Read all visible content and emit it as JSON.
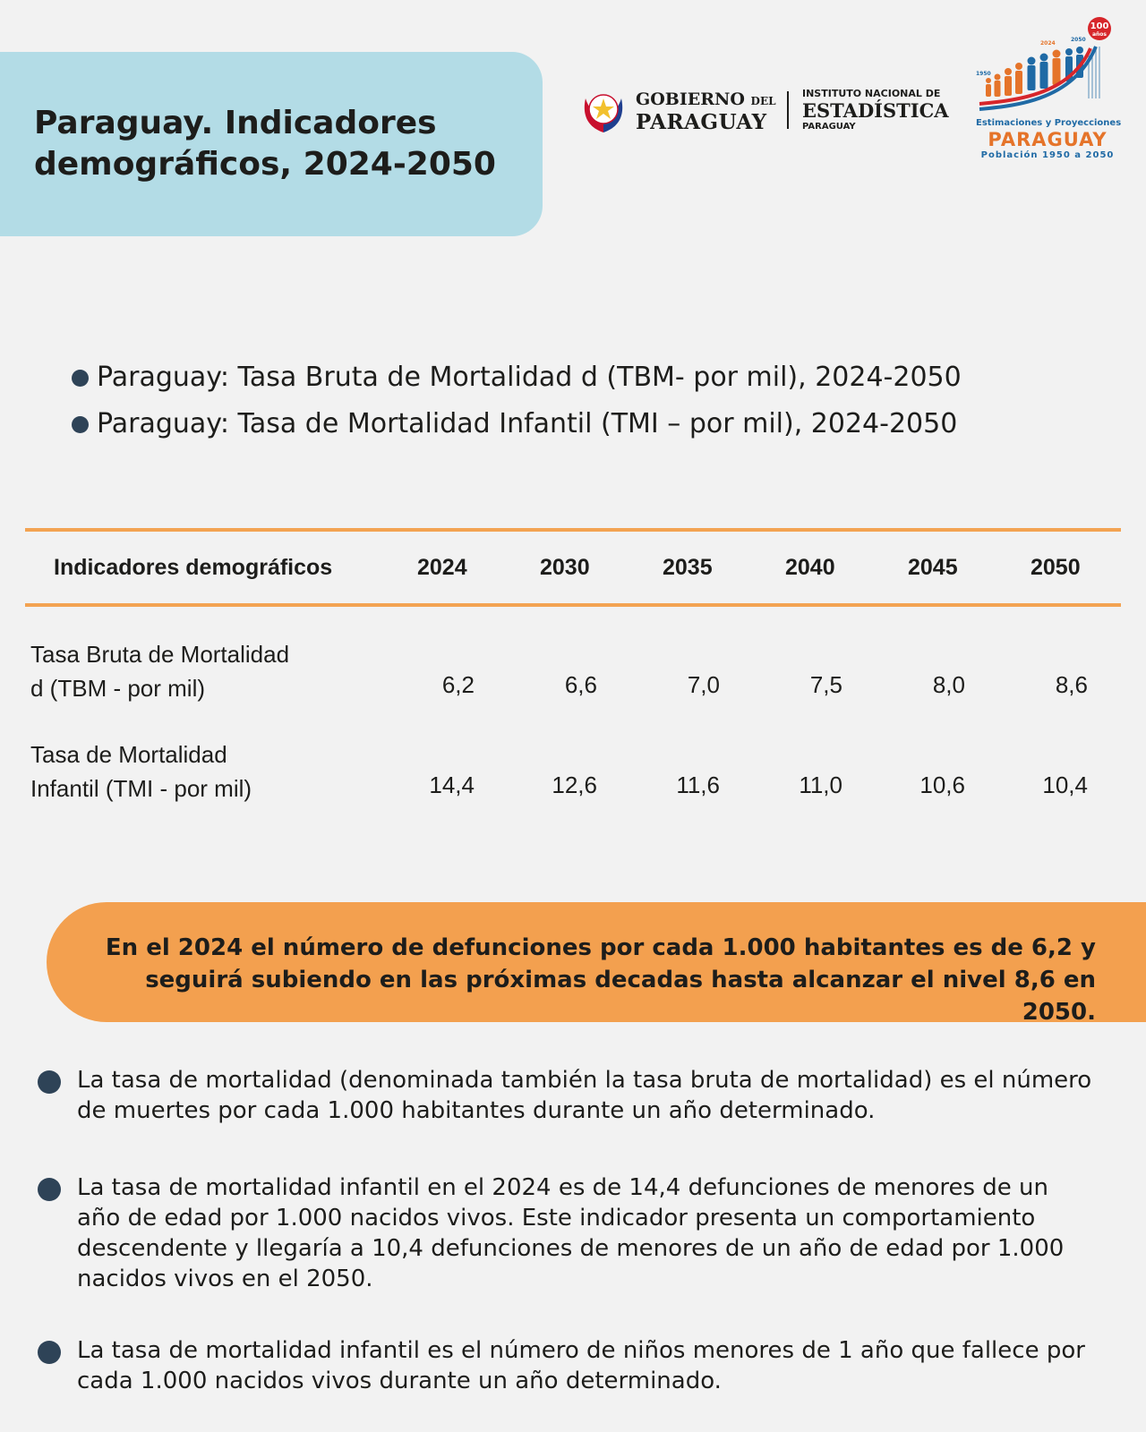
{
  "header": {
    "title": "Paraguay. Indicadores demográficos, 2024-2050"
  },
  "logos": {
    "gov_line1": "GOBIERNO",
    "gov_del": "DEL",
    "gov_line2": "PARAGUAY",
    "ine_line1": "INSTITUTO NACIONAL DE",
    "ine_line2": "ESTADÍSTICA",
    "ine_line3": "PARAGUAY",
    "pop_badge": "100",
    "pop_badge_sub": "años",
    "pop_year_start": "1950",
    "pop_year_mid": "2024",
    "pop_year_end": "2050",
    "pop_sub": "Estimaciones y Proyecciones",
    "pop_main": "PARAGUAY",
    "pop_range": "Población 1950 a 2050"
  },
  "subtitles": [
    "Paraguay: Tasa Bruta de Mortalidad d (TBM- por mil), 2024-2050",
    "Paraguay: Tasa de Mortalidad Infantil (TMI – por mil), 2024-2050"
  ],
  "table": {
    "header_label": "Indicadores demográficos",
    "years": [
      "2024",
      "2030",
      "2035",
      "2040",
      "2045",
      "2050"
    ],
    "rows": [
      {
        "label_line1": "Tasa Bruta de Mortalidad",
        "label_line2": "d (TBM - por mil)",
        "values": [
          "6,2",
          "6,6",
          "7,0",
          "7,5",
          "8,0",
          "8,6"
        ]
      },
      {
        "label_line1": "Tasa de Mortalidad",
        "label_line2": "Infantil (TMI - por mil)",
        "values": [
          "14,4",
          "12,6",
          "11,6",
          "11,0",
          "10,6",
          "10,4"
        ]
      }
    ]
  },
  "callout": {
    "line1": "En el 2024 el número de defunciones por cada 1.000 habitantes es de 6,2 y",
    "line2": "seguirá subiendo en las próximas decadas hasta alcanzar el nivel 8,6 en 2050."
  },
  "notes": [
    "La tasa de mortalidad (denominada también la tasa bruta de mortalidad) es el número de muertes por cada 1.000 habitantes durante un año determinado.",
    "La tasa de mortalidad infantil en el 2024 es de 14,4 defunciones de menores de un año de edad por 1.000 nacidos vivos. Este indicador presenta un comportamiento descendente y llegaría a 10,4 defunciones de menores de un año de edad por 1.000 nacidos vivos en el 2050.",
    "La tasa de mortalidad infantil es el número de niños menores de 1 año que fallece por cada 1.000 nacidos vivos durante un año determinado."
  ],
  "colors": {
    "title_bg": "#b3dce6",
    "accent_orange": "#f3a352",
    "bullet": "#2e4357",
    "background": "#f2f2f2"
  }
}
